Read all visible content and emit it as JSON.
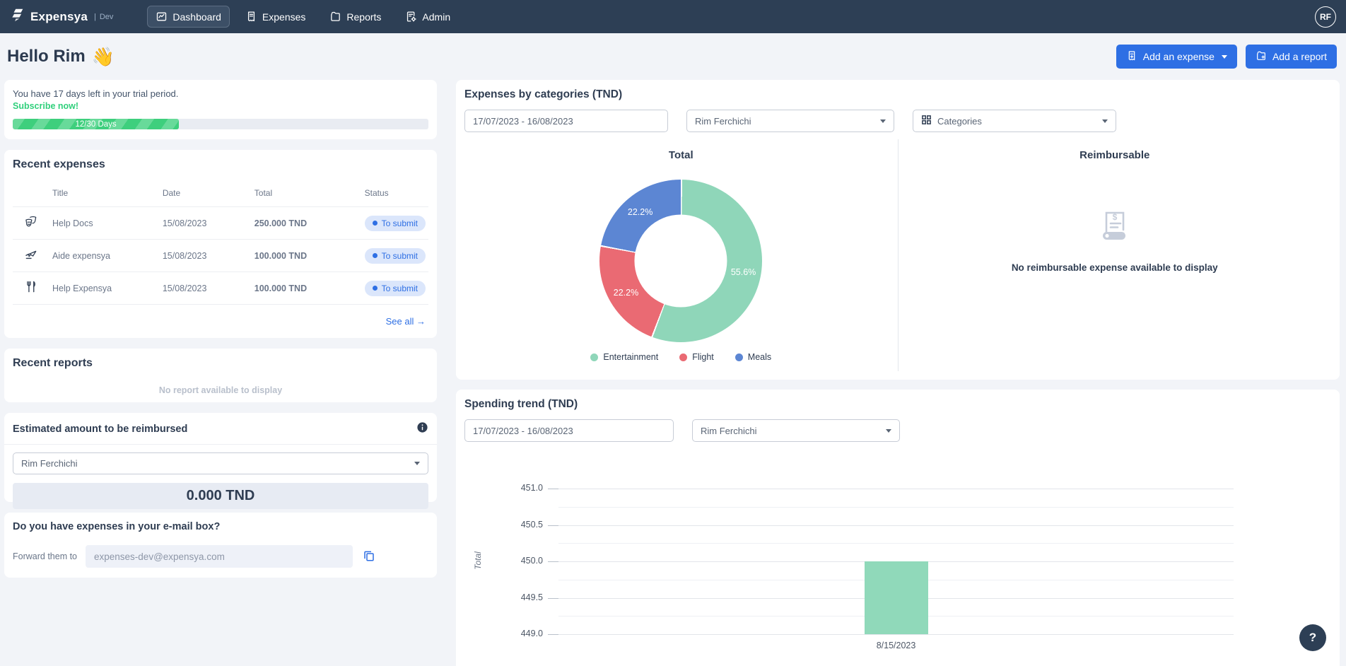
{
  "colors": {
    "accent_blue": "#2e6fe4",
    "green": "#3ecf7d",
    "navbar": "#2d3f55",
    "donut": [
      "#8fd6b9",
      "#ea6a73",
      "#5c86d3"
    ],
    "bar_green": "#90d9ba"
  },
  "navbar": {
    "brand": "Expensya",
    "env_separator": "|",
    "env_badge": "Dev",
    "items": [
      {
        "label": "Dashboard",
        "active": true
      },
      {
        "label": "Expenses",
        "active": false
      },
      {
        "label": "Reports",
        "active": false
      },
      {
        "label": "Admin",
        "active": false
      }
    ],
    "avatar_initials": "RF"
  },
  "header": {
    "greeting": "Hello Rim",
    "greeting_emoji": "👋",
    "add_expense_label": "Add an expense",
    "add_report_label": "Add a report"
  },
  "trial": {
    "message": "You have 17 days left in your trial period.",
    "subscribe_label": "Subscribe now!",
    "progress_label": "12/30 Days",
    "progress_percent": 40
  },
  "recent_expenses": {
    "title": "Recent expenses",
    "columns": [
      "Title",
      "Date",
      "Total",
      "Status"
    ],
    "rows": [
      {
        "icon": "entertainment-icon",
        "title": "Help Docs",
        "date": "15/08/2023",
        "total": "250.000 TND",
        "status": "To submit"
      },
      {
        "icon": "flight-icon",
        "title": "Aide expensya",
        "date": "15/08/2023",
        "total": "100.000 TND",
        "status": "To submit"
      },
      {
        "icon": "meals-icon",
        "title": "Help Expensya",
        "date": "15/08/2023",
        "total": "100.000 TND",
        "status": "To submit"
      }
    ],
    "see_all_label": "See all",
    "see_all_arrow": "→"
  },
  "recent_reports": {
    "title": "Recent reports",
    "empty_message": "No report available to display"
  },
  "estimated": {
    "title": "Estimated amount to be reimbursed",
    "user": "Rim Ferchichi",
    "amount": "0.000 TND"
  },
  "email_box": {
    "title": "Do you have expenses in your e-mail box?",
    "forward_label": "Forward them to",
    "email": "expenses-dev@expensya.com"
  },
  "categories_section": {
    "title": "Expenses by categories (TND)",
    "date_range": "17/07/2023 - 16/08/2023",
    "user_filter": "Rim Ferchichi",
    "categories_filter": "Categories",
    "total_title": "Total",
    "reimbursable_title": "Reimbursable",
    "reimbursable_empty": "No reimbursable expense available to display"
  },
  "spending_section": {
    "title": "Spending trend (TND)",
    "date_range": "17/07/2023 - 16/08/2023",
    "user_filter": "Rim Ferchichi"
  },
  "chart_data": [
    {
      "type": "pie",
      "donut": true,
      "title": "Total",
      "labels": [
        "Entertainment",
        "Flight",
        "Meals"
      ],
      "values": [
        55.6,
        22.2,
        22.2
      ],
      "value_labels": [
        "55.6%",
        "22.2%",
        "22.2%"
      ],
      "colors": [
        "#8fd6b9",
        "#ea6a73",
        "#5c86d3"
      ],
      "legend_position": "bottom",
      "start_angle_deg": 0,
      "direction": "clockwise"
    },
    {
      "type": "bar",
      "title": "Spending trend (TND)",
      "categories": [
        "8/15/2023"
      ],
      "values": [
        450.0
      ],
      "xlabel": "",
      "ylabel": "Total",
      "ylim": [
        449.0,
        451.0
      ],
      "ytick_step": 0.5,
      "minor_grid_step": 0.25,
      "bar_color": "#90d9ba",
      "grid": true
    }
  ],
  "help_label": "?"
}
